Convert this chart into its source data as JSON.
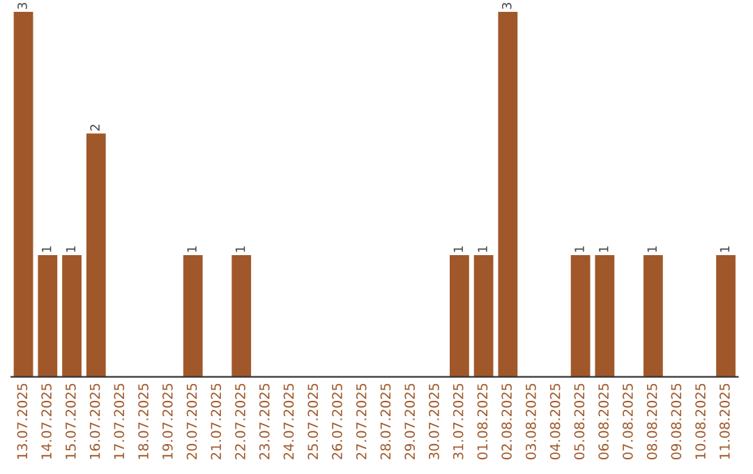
{
  "chart_data": {
    "type": "bar",
    "categories": [
      "13.07.2025",
      "14.07.2025",
      "15.07.2025",
      "16.07.2025",
      "17.07.2025",
      "18.07.2025",
      "19.07.2025",
      "20.07.2025",
      "21.07.2025",
      "22.07.2025",
      "23.07.2025",
      "24.07.2025",
      "25.07.2025",
      "26.07.2025",
      "27.07.2025",
      "28.07.2025",
      "29.07.2025",
      "30.07.2025",
      "31.07.2025",
      "01.08.2025",
      "02.08.2025",
      "03.08.2025",
      "04.08.2025",
      "05.08.2025",
      "06.08.2025",
      "07.08.2025",
      "08.08.2025",
      "09.08.2025",
      "10.08.2025",
      "11.08.2025"
    ],
    "values": [
      3,
      1,
      1,
      2,
      0,
      0,
      0,
      1,
      0,
      1,
      0,
      0,
      0,
      0,
      0,
      0,
      0,
      0,
      1,
      1,
      3,
      0,
      0,
      1,
      1,
      0,
      1,
      0,
      0,
      1
    ],
    "value_labels": [
      "3",
      "1",
      "1",
      "2",
      null,
      null,
      null,
      "1",
      null,
      "1",
      null,
      null,
      null,
      null,
      null,
      null,
      null,
      null,
      "1",
      "1",
      "3",
      null,
      null,
      "1",
      "1",
      null,
      "1",
      null,
      null,
      "1"
    ],
    "color": "#a0582a",
    "tick_labels": "x",
    "grid": false
  }
}
